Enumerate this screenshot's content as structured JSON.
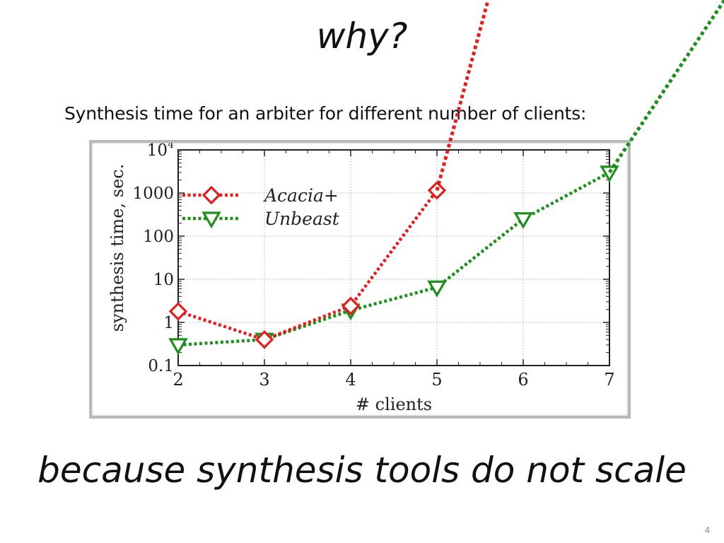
{
  "slide": {
    "title": "why?",
    "subtitle": "Synthesis time for an arbiter for different number of clients:",
    "conclusion": "because synthesis tools do not scale",
    "page_number": "4"
  },
  "chart_data": {
    "type": "line",
    "x": [
      2,
      3,
      4,
      5,
      6,
      7
    ],
    "xlabel": "# clients",
    "ylabel": "synthesis time, sec.",
    "yscale": "log",
    "xlim": [
      2,
      7
    ],
    "ylim": [
      0.1,
      10000
    ],
    "x_ticks": [
      "2",
      "3",
      "4",
      "5",
      "6",
      "7"
    ],
    "y_ticks": [
      {
        "value": 0.1,
        "label": "0.1"
      },
      {
        "value": 1,
        "label": "1"
      },
      {
        "value": 10,
        "label": "10"
      },
      {
        "value": 100,
        "label": "100"
      },
      {
        "value": 1000,
        "label": "1000"
      },
      {
        "value": 10000,
        "label": "10",
        "sup": "4"
      }
    ],
    "grid": true,
    "legend_position": "upper-left",
    "series": [
      {
        "name": "Acacia+",
        "marker": "diamond",
        "color": "#e02020",
        "values": [
          1.8,
          0.4,
          2.4,
          1150,
          null,
          null
        ]
      },
      {
        "name": "Unbeast",
        "marker": "triangle-down",
        "color": "#1e8f1e",
        "values": [
          0.3,
          0.4,
          1.9,
          6.5,
          250,
          3000
        ]
      }
    ],
    "off_chart_trends": [
      {
        "series": "Acacia+",
        "color": "#e02020"
      },
      {
        "series": "Unbeast",
        "color": "#1e8f1e"
      }
    ]
  }
}
